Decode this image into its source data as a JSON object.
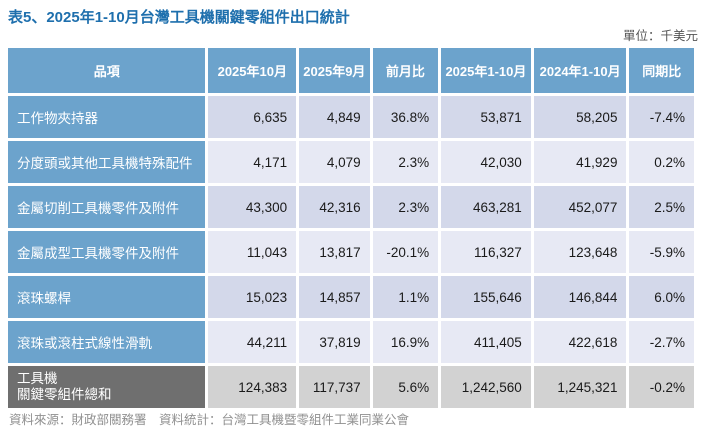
{
  "title": "表5、2025年1-10月台灣工具機關鍵零組件出口統計",
  "unit_label": "單位：千美元",
  "table": {
    "headers": [
      "品項",
      "2025年10月",
      "2025年9月",
      "前月比",
      "2025年1-10月",
      "2024年1-10月",
      "同期比"
    ],
    "rows": [
      {
        "label": "工作物夾持器",
        "values": [
          "6,635",
          "4,849",
          "36.8%",
          "53,871",
          "58,205",
          "-7.4%"
        ]
      },
      {
        "label": "分度頭或其他工具機特殊配件",
        "values": [
          "4,171",
          "4,079",
          "2.3%",
          "42,030",
          "41,929",
          "0.2%"
        ]
      },
      {
        "label": "金屬切削工具機零件及附件",
        "values": [
          "43,300",
          "42,316",
          "2.3%",
          "463,281",
          "452,077",
          "2.5%"
        ]
      },
      {
        "label": "金屬成型工具機零件及附件",
        "values": [
          "11,043",
          "13,817",
          "-20.1%",
          "116,327",
          "123,648",
          "-5.9%"
        ]
      },
      {
        "label": "滾珠螺桿",
        "values": [
          "15,023",
          "14,857",
          "1.1%",
          "155,646",
          "146,844",
          "6.0%"
        ]
      },
      {
        "label": "滾珠或滾柱式線性滑軌",
        "values": [
          "44,211",
          "37,819",
          "16.9%",
          "411,405",
          "422,618",
          "-2.7%"
        ]
      }
    ],
    "total_row": {
      "label_line1": "工具機",
      "label_line2": "關鍵零組件總和",
      "values": [
        "124,383",
        "117,737",
        "5.6%",
        "1,242,560",
        "1,245,321",
        "-0.2%"
      ]
    }
  },
  "footer": "資料來源：財政部關務署　資料統計：台灣工具機暨零組件工業同業公會",
  "colors": {
    "title_blue": "#1e6fad",
    "header_blue": "#6CA3CC",
    "row_shade_dark": "#d3d8ea",
    "row_shade_light": "#e7e9f4",
    "total_label_gray": "#6f6f6f",
    "total_cell_gray": "#d2d2d2"
  },
  "chart_data": {
    "type": "table",
    "title": "表5、2025年1-10月台灣工具機關鍵零組件出口統計",
    "unit": "千美元",
    "columns": [
      "品項",
      "2025年10月",
      "2025年9月",
      "前月比",
      "2025年1-10月",
      "2024年1-10月",
      "同期比"
    ],
    "rows": [
      [
        "工作物夾持器",
        6635,
        4849,
        "36.8%",
        53871,
        58205,
        "-7.4%"
      ],
      [
        "分度頭或其他工具機特殊配件",
        4171,
        4079,
        "2.3%",
        42030,
        41929,
        "0.2%"
      ],
      [
        "金屬切削工具機零件及附件",
        43300,
        42316,
        "2.3%",
        463281,
        452077,
        "2.5%"
      ],
      [
        "金屬成型工具機零件及附件",
        11043,
        13817,
        "-20.1%",
        116327,
        123648,
        "-5.9%"
      ],
      [
        "滾珠螺桿",
        15023,
        14857,
        "1.1%",
        155646,
        146844,
        "6.0%"
      ],
      [
        "滾珠或滾柱式線性滑軌",
        44211,
        37819,
        "16.9%",
        411405,
        422618,
        "-2.7%"
      ],
      [
        "工具機關鍵零組件總和",
        124383,
        117737,
        "5.6%",
        1242560,
        1245321,
        "-0.2%"
      ]
    ]
  }
}
